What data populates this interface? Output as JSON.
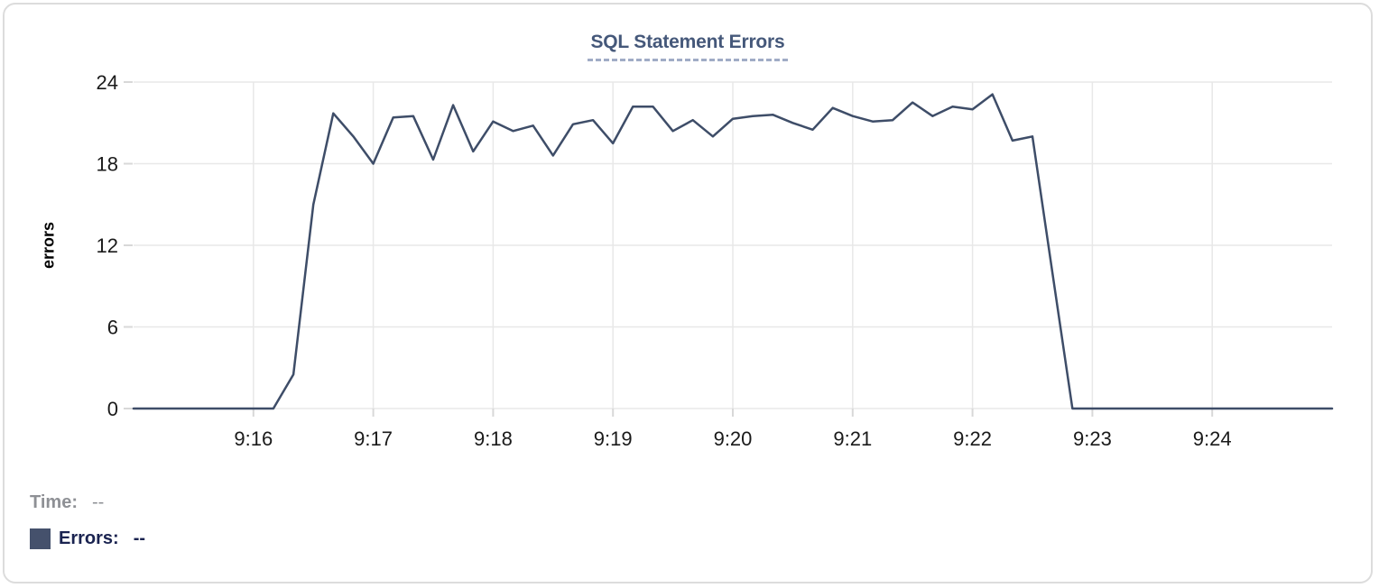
{
  "title": {
    "text": "SQL Statement Errors"
  },
  "legend": {
    "time_label": "Time:",
    "time_value": "--",
    "errors_label": "Errors:",
    "errors_value": "--",
    "swatch_color": "#45516c"
  },
  "colors": {
    "line": "#3e4d68",
    "title_text": "#45587a",
    "title_underline": "#a0acc6",
    "grid": "#e8e8e8",
    "tick": "#d8d8d8",
    "axis_text": "#1a1a1a",
    "axis_label": "#000000",
    "time_label": "#8e9095",
    "errors_label": "#1a2350",
    "card_border": "#dcdcdc"
  },
  "chart_data": {
    "type": "line",
    "title": "SQL Statement Errors",
    "xlabel": "",
    "ylabel": "errors",
    "ylim": [
      0,
      24
    ],
    "yticks": [
      0,
      6,
      12,
      18,
      24
    ],
    "xlim": [
      "9:15:00",
      "9:25:00"
    ],
    "xticks": [
      "9:16",
      "9:17",
      "9:18",
      "9:19",
      "9:20",
      "9:21",
      "9:22",
      "9:23",
      "9:24"
    ],
    "grid": true,
    "legend_position": "bottom-left",
    "series": [
      {
        "name": "Errors",
        "color": "#3e4d68",
        "x": [
          "9:15:00",
          "9:15:10",
          "9:15:20",
          "9:15:30",
          "9:15:40",
          "9:15:50",
          "9:16:00",
          "9:16:10",
          "9:16:20",
          "9:16:30",
          "9:16:40",
          "9:16:50",
          "9:17:00",
          "9:17:10",
          "9:17:20",
          "9:17:30",
          "9:17:40",
          "9:17:50",
          "9:18:00",
          "9:18:10",
          "9:18:20",
          "9:18:30",
          "9:18:40",
          "9:18:50",
          "9:19:00",
          "9:19:10",
          "9:19:20",
          "9:19:30",
          "9:19:40",
          "9:19:50",
          "9:20:00",
          "9:20:10",
          "9:20:20",
          "9:20:30",
          "9:20:40",
          "9:20:50",
          "9:21:00",
          "9:21:10",
          "9:21:20",
          "9:21:30",
          "9:21:40",
          "9:21:50",
          "9:22:00",
          "9:22:10",
          "9:22:20",
          "9:22:30",
          "9:22:40",
          "9:22:50",
          "9:23:00",
          "9:23:10",
          "9:23:20",
          "9:23:30",
          "9:23:40",
          "9:23:50",
          "9:24:00",
          "9:24:10",
          "9:24:20",
          "9:24:30",
          "9:24:40",
          "9:24:50",
          "9:25:00"
        ],
        "values": [
          0,
          0,
          0,
          0,
          0,
          0,
          0,
          0,
          2.5,
          15,
          21.7,
          20,
          18,
          21.4,
          21.5,
          18.3,
          22.3,
          18.9,
          21.1,
          20.4,
          20.8,
          18.6,
          20.9,
          21.2,
          19.5,
          22.2,
          22.2,
          20.4,
          21.2,
          20,
          21.3,
          21.5,
          21.6,
          21,
          20.5,
          22.1,
          21.5,
          21.1,
          21.2,
          22.5,
          21.5,
          22.2,
          22,
          23.1,
          19.7,
          20,
          10,
          0,
          0,
          0,
          0,
          0,
          0,
          0,
          0,
          0,
          0,
          0,
          0,
          0,
          0
        ]
      }
    ]
  }
}
